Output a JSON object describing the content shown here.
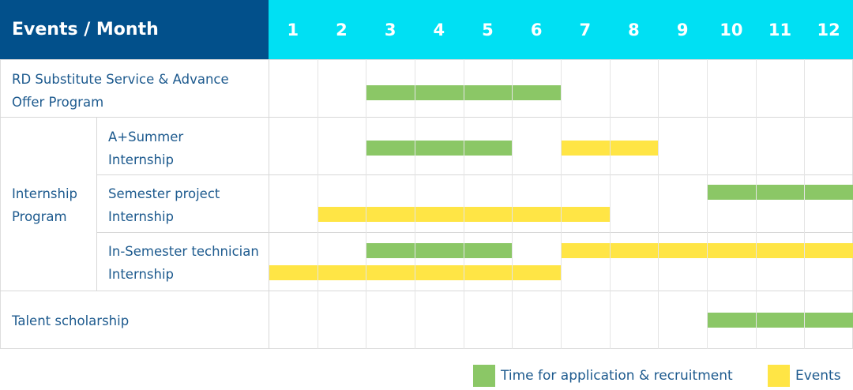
{
  "header": {
    "title": "Events / Month"
  },
  "colors": {
    "header_dark": "#02508B",
    "header_cyan": "#00E0F3",
    "application": "#8BC766",
    "events": "#FFE545",
    "text": "#1D5A8E"
  },
  "labels": {
    "rd": "RD Substitute Service & Advance Offer Program",
    "internship": "Internship Program",
    "summer": "A+Summer Internship",
    "semester": "Semester project Internship",
    "technician": "In-Semester technician Internship",
    "talent": "Talent scholarship"
  },
  "chart_data": {
    "type": "gantt",
    "months": [
      "1",
      "2",
      "3",
      "4",
      "5",
      "6",
      "7",
      "8",
      "9",
      "10",
      "11",
      "12"
    ],
    "series": [
      {
        "name": "Time for application & recruitment",
        "color": "#8BC766"
      },
      {
        "name": "Events",
        "color": "#FFE545"
      }
    ],
    "tasks": [
      {
        "row": "RD Substitute Service & Advance Offer Program",
        "type": "Time for application & recruitment",
        "start": 3,
        "end": 6
      },
      {
        "row": "A+Summer Internship",
        "type": "Time for application & recruitment",
        "start": 3,
        "end": 5
      },
      {
        "row": "A+Summer Internship",
        "type": "Events",
        "start": 7,
        "end": 8
      },
      {
        "row": "Semester project Internship",
        "type": "Time for application & recruitment",
        "start": 10,
        "end": 12
      },
      {
        "row": "Semester project Internship",
        "type": "Events",
        "start": 2,
        "end": 7
      },
      {
        "row": "In-Semester technician Internship",
        "type": "Time for application & recruitment",
        "start": 3,
        "end": 5
      },
      {
        "row": "In-Semester technician Internship",
        "type": "Events",
        "start": 7,
        "end": 12
      },
      {
        "row": "In-Semester technician Internship",
        "type": "Events",
        "start": 1,
        "end": 6
      },
      {
        "row": "Talent scholarship",
        "type": "Time for application & recruitment",
        "start": 10,
        "end": 12
      }
    ]
  },
  "legend": {
    "application": "Time for application & recruitment",
    "events": "Events"
  }
}
